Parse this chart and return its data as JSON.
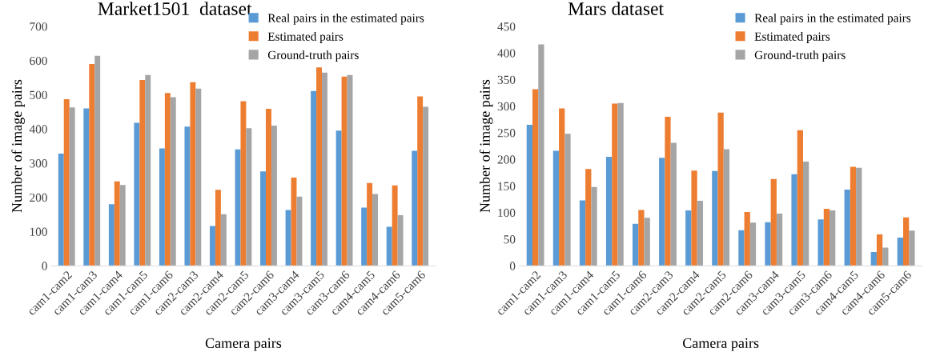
{
  "chart_data": [
    {
      "type": "bar",
      "title": "Market1501  dataset",
      "xlabel": "Camera pairs",
      "ylabel": "Number of image pairs",
      "categories": [
        "cam1-cam2",
        "cam1-cam3",
        "cam1-cam4",
        "cam1-cam5",
        "cam1-cam6",
        "cam2-cam3",
        "cam2-cam4",
        "cam2-cam5",
        "cam2-cam6",
        "cam3-cam4",
        "cam3-cam5",
        "cam3-cam6",
        "cam4-cam5",
        "cam4-cam6",
        "cam5-cam6"
      ],
      "ylim": [
        0,
        700
      ],
      "yticks": [
        0,
        100,
        200,
        300,
        400,
        500,
        600,
        700
      ],
      "grid": false,
      "legend": "top right",
      "series": [
        {
          "name": "Real pairs in the estimated pairs",
          "color": "#5b9bd5",
          "values": [
            328,
            460,
            180,
            418,
            343,
            407,
            116,
            340,
            276,
            163,
            511,
            395,
            170,
            114,
            336
          ]
        },
        {
          "name": "Estimated pairs",
          "color": "#ed7d31",
          "values": [
            487,
            590,
            247,
            543,
            505,
            537,
            222,
            481,
            459,
            258,
            580,
            553,
            242,
            235,
            495
          ]
        },
        {
          "name": "Ground-truth pairs",
          "color": "#a5a5a5",
          "values": [
            463,
            614,
            236,
            558,
            493,
            518,
            151,
            402,
            410,
            202,
            565,
            558,
            210,
            148,
            465
          ]
        }
      ]
    },
    {
      "type": "bar",
      "title": "Mars dataset",
      "xlabel": "Camera pairs",
      "ylabel": "Number of image pairs",
      "categories": [
        "cam1-cam2",
        "cam1-cam3",
        "cam1-cam4",
        "cam1-cam5",
        "cam1-cam6",
        "cam2-cam3",
        "cam2-cam4",
        "cam2-cam5",
        "cam2-cam6",
        "cam3-cam4",
        "cam3-cam5",
        "cam3-cam6",
        "cam4-cam5",
        "cam4-cam6",
        "cam5-cam6"
      ],
      "ylim": [
        0,
        450
      ],
      "yticks": [
        0,
        50,
        100,
        150,
        200,
        250,
        300,
        350,
        400,
        450
      ],
      "grid": false,
      "legend": "top right",
      "series": [
        {
          "name": "Real pairs in the estimated pairs",
          "color": "#5b9bd5",
          "values": [
            265,
            216,
            123,
            205,
            79,
            203,
            104,
            178,
            67,
            82,
            172,
            87,
            143,
            26,
            53
          ]
        },
        {
          "name": "Estimated pairs",
          "color": "#ed7d31",
          "values": [
            332,
            296,
            182,
            305,
            105,
            280,
            179,
            288,
            101,
            163,
            255,
            107,
            186,
            59,
            91
          ]
        },
        {
          "name": "Ground-truth pairs",
          "color": "#a5a5a5",
          "values": [
            416,
            248,
            148,
            306,
            90,
            231,
            122,
            219,
            81,
            98,
            196,
            104,
            184,
            34,
            66
          ]
        }
      ]
    }
  ]
}
